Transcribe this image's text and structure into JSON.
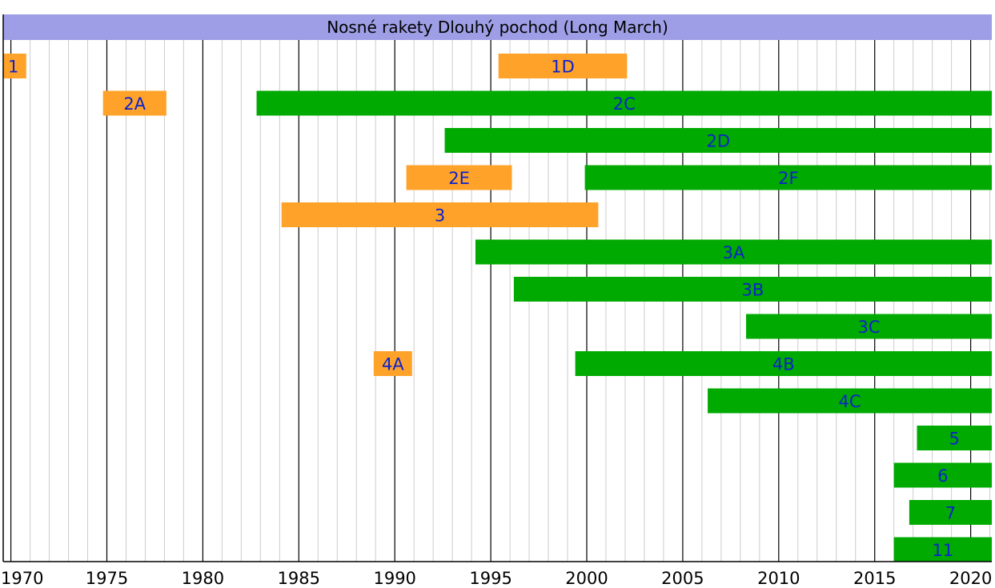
{
  "chart_data": {
    "type": "gantt",
    "title": "Nosné rakety Dlouhý pochod (Long March)",
    "xlim": [
      1969.6,
      2021.1
    ],
    "x_ticks": [
      1970,
      1975,
      1980,
      1985,
      1990,
      1995,
      2000,
      2005,
      2010,
      2015,
      2020
    ],
    "minor_tick_step": 1,
    "grid": true,
    "legend": "none",
    "colors": {
      "title_band": "#9E9EE6",
      "retired": "#FFA22A",
      "active": "#00AA00",
      "label": "#0B22CC",
      "major_grid": "#000000",
      "minor_grid": "#CCCCCC"
    },
    "rows": [
      {
        "bars": [
          {
            "label": "1",
            "start": 1969.6,
            "end": 1970.8,
            "status": "retired"
          },
          {
            "label": "1D",
            "start": 1995.4,
            "end": 2002.1,
            "status": "retired"
          }
        ]
      },
      {
        "bars": [
          {
            "label": "2A",
            "start": 1974.8,
            "end": 1978.1,
            "status": "retired"
          },
          {
            "label": "2C",
            "start": 1982.8,
            "end": 2021.1,
            "status": "active"
          }
        ]
      },
      {
        "bars": [
          {
            "label": "2D",
            "start": 1992.6,
            "end": 2021.1,
            "status": "active"
          }
        ]
      },
      {
        "bars": [
          {
            "label": "2E",
            "start": 1990.6,
            "end": 1996.1,
            "status": "retired"
          },
          {
            "label": "2F",
            "start": 1999.9,
            "end": 2021.1,
            "status": "active"
          }
        ]
      },
      {
        "bars": [
          {
            "label": "3",
            "start": 1984.1,
            "end": 2000.6,
            "status": "retired"
          }
        ]
      },
      {
        "bars": [
          {
            "label": "3A",
            "start": 1994.2,
            "end": 2021.1,
            "status": "active"
          }
        ]
      },
      {
        "bars": [
          {
            "label": "3B",
            "start": 1996.2,
            "end": 2021.1,
            "status": "active"
          }
        ]
      },
      {
        "bars": [
          {
            "label": "3C",
            "start": 2008.3,
            "end": 2021.1,
            "status": "active"
          }
        ]
      },
      {
        "bars": [
          {
            "label": "4A",
            "start": 1988.9,
            "end": 1990.9,
            "status": "retired"
          },
          {
            "label": "4B",
            "start": 1999.4,
            "end": 2021.1,
            "status": "active"
          }
        ]
      },
      {
        "bars": [
          {
            "label": "4C",
            "start": 2006.3,
            "end": 2021.1,
            "status": "active"
          }
        ]
      },
      {
        "bars": [
          {
            "label": "5",
            "start": 2017.2,
            "end": 2021.1,
            "status": "active"
          }
        ]
      },
      {
        "bars": [
          {
            "label": "6",
            "start": 2016.0,
            "end": 2021.1,
            "status": "active"
          }
        ]
      },
      {
        "bars": [
          {
            "label": "7",
            "start": 2016.8,
            "end": 2021.1,
            "status": "active"
          }
        ]
      },
      {
        "bars": [
          {
            "label": "11",
            "start": 2016.0,
            "end": 2021.1,
            "status": "active"
          }
        ]
      }
    ]
  }
}
